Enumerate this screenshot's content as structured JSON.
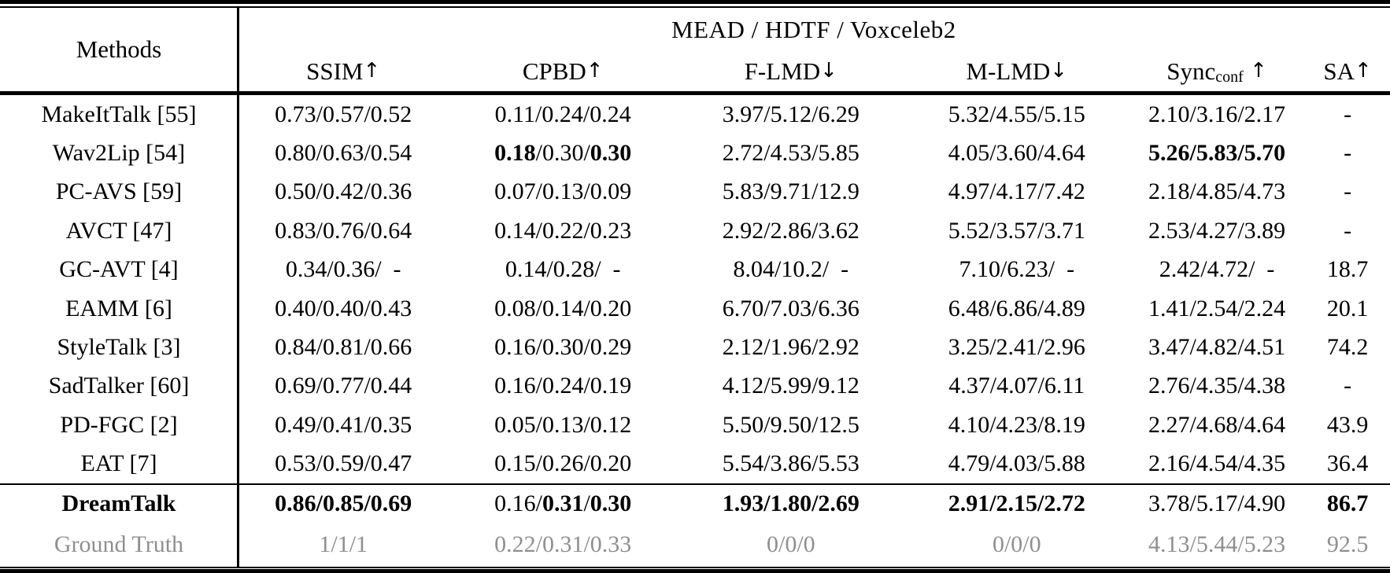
{
  "colors": {
    "text": "#000000",
    "muted": "#8f8f8f",
    "rule": "#000000",
    "background": "#ffffff"
  },
  "table": {
    "group_header": "MEAD / HDTF / Voxceleb2",
    "columns": [
      {
        "key": "methods",
        "label": "Methods"
      },
      {
        "key": "ssim",
        "label": "SSIM",
        "arrow": "↑"
      },
      {
        "key": "cpbd",
        "label": "CPBD",
        "arrow": "↑"
      },
      {
        "key": "f-lmd",
        "label": "F-LMD",
        "arrow": "↓"
      },
      {
        "key": "m-lmd",
        "label": "M-LMD",
        "arrow": "↓"
      },
      {
        "key": "sync-conf",
        "label": "Sync",
        "sub": "conf",
        "arrow": "↑",
        "arrow_space": true
      },
      {
        "key": "sa",
        "label": "SA",
        "arrow": "↑"
      }
    ],
    "rows": [
      {
        "method": "MakeItTalk [55]",
        "cells": [
          "0.73/0.57/0.52",
          "0.11/0.24/0.24",
          "3.97/5.12/6.29",
          "5.32/4.55/5.15",
          "2.10/3.16/2.17",
          "-"
        ]
      },
      {
        "method": "Wav2Lip [54]",
        "cells": [
          "0.80/0.63/0.54",
          "**0.18**/0.30/**0.30**",
          "2.72/4.53/5.85",
          "4.05/3.60/4.64",
          "**5.26/5.83/5.70**",
          "-"
        ]
      },
      {
        "method": "PC-AVS [59]",
        "cells": [
          "0.50/0.42/0.36",
          "0.07/0.13/0.09",
          "5.83/9.71/12.9",
          "4.97/4.17/7.42",
          "2.18/4.85/4.73",
          "-"
        ]
      },
      {
        "method": "AVCT [47]",
        "cells": [
          "0.83/0.76/0.64",
          "0.14/0.22/0.23",
          "2.92/2.86/3.62",
          "5.52/3.57/3.71",
          "2.53/4.27/3.89",
          "-"
        ]
      },
      {
        "method": "GC-AVT [4]",
        "cells": [
          "0.34/0.36/  -",
          "0.14/0.28/  -",
          "8.04/10.2/  -",
          "7.10/6.23/  -",
          "2.42/4.72/  -",
          "18.7"
        ]
      },
      {
        "method": "EAMM [6]",
        "cells": [
          "0.40/0.40/0.43",
          "0.08/0.14/0.20",
          "6.70/7.03/6.36",
          "6.48/6.86/4.89",
          "1.41/2.54/2.24",
          "20.1"
        ]
      },
      {
        "method": "StyleTalk [3]",
        "cells": [
          "0.84/0.81/0.66",
          "0.16/0.30/0.29",
          "2.12/1.96/2.92",
          "3.25/2.41/2.96",
          "3.47/4.82/4.51",
          "74.2"
        ]
      },
      {
        "method": "SadTalker [60]",
        "cells": [
          "0.69/0.77/0.44",
          "0.16/0.24/0.19",
          "4.12/5.99/9.12",
          "4.37/4.07/6.11",
          "2.76/4.35/4.38",
          "-"
        ]
      },
      {
        "method": "PD-FGC [2]",
        "cells": [
          "0.49/0.41/0.35",
          "0.05/0.13/0.12",
          "5.50/9.50/12.5",
          "4.10/4.23/8.19",
          "2.27/4.68/4.64",
          "43.9"
        ]
      },
      {
        "method": "EAT [7]",
        "cells": [
          "0.53/0.59/0.47",
          "0.15/0.26/0.20",
          "5.54/3.86/5.53",
          "4.79/4.03/5.88",
          "2.16/4.54/4.35",
          "36.4"
        ]
      },
      {
        "method": "**DreamTalk**",
        "cells": [
          "**0.86/0.85/0.69**",
          "0.16/**0.31**/**0.30**",
          "**1.93/1.80/2.69**",
          "**2.91/2.15/2.72**",
          "3.78/5.17/4.90",
          "**86.7**"
        ],
        "rule_before": true,
        "highlight": "proposed-method"
      },
      {
        "method": "Ground Truth",
        "cells": [
          "1/1/1",
          "0.22/0.31/0.33",
          "0/0/0",
          "0/0/0",
          "4.13/5.44/5.23",
          "92.5"
        ],
        "style": "gray"
      }
    ]
  }
}
